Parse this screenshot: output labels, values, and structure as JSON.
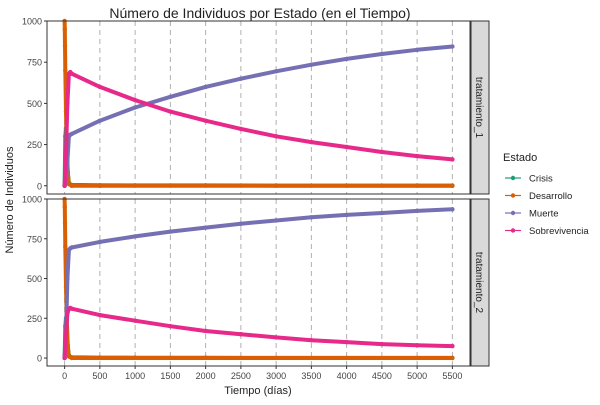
{
  "chart_data": {
    "type": "line",
    "title": "Número de Individuos por Estado (en el Tiempo)",
    "xlabel": "Tiempo (días)",
    "ylabel": "Número de Individuos",
    "xlim": [
      -250,
      5750
    ],
    "ylim": [
      -50,
      1000
    ],
    "x_ticks": [
      0,
      500,
      1000,
      1500,
      2000,
      2500,
      3000,
      3500,
      4000,
      4500,
      5000,
      5500
    ],
    "y_ticks": [
      0,
      250,
      500,
      750,
      1000
    ],
    "legend": {
      "title": "Estado",
      "position": "right",
      "entries": [
        "Crisis",
        "Desarrollo",
        "Muerte",
        "Sobrevivencia"
      ]
    },
    "colors": {
      "Crisis": "#1b9e77",
      "Desarrollo": "#d95f02",
      "Muerte": "#7570b3",
      "Sobrevivencia": "#e7298a",
      "strip_fill": "#d9d9d9",
      "grid": "#b0b0b0"
    },
    "panels": [
      {
        "strip_label": "tratamiento_1",
        "series": [
          {
            "name": "Crisis",
            "x": [
              0,
              10,
              20,
              30,
              45,
              60,
              100,
              500,
              1000,
              2000,
              3000,
              4000,
              5000,
              5500
            ],
            "y": [
              0,
              300,
              350,
              200,
              80,
              15,
              5,
              3,
              2,
              2,
              1,
              1,
              1,
              1
            ]
          },
          {
            "name": "Desarrollo",
            "x": [
              0,
              2,
              5,
              10,
              20,
              30,
              45,
              60,
              100,
              500,
              5500
            ],
            "y": [
              1000,
              950,
              850,
              700,
              450,
              250,
              80,
              10,
              0,
              0,
              0
            ]
          },
          {
            "name": "Muerte",
            "x": [
              0,
              20,
              40,
              60,
              80,
              100,
              500,
              1000,
              1500,
              2000,
              2500,
              3000,
              3500,
              4000,
              4500,
              5000,
              5500
            ],
            "y": [
              0,
              20,
              150,
              300,
              310,
              315,
              395,
              475,
              540,
              600,
              650,
              695,
              735,
              770,
              800,
              825,
              845
            ]
          },
          {
            "name": "Sobrevivencia",
            "x": [
              0,
              20,
              40,
              60,
              80,
              100,
              500,
              1000,
              1500,
              2000,
              2500,
              3000,
              3500,
              4000,
              4500,
              5000,
              5500
            ],
            "y": [
              0,
              200,
              500,
              680,
              690,
              680,
              600,
              520,
              450,
              395,
              345,
              300,
              265,
              235,
              205,
              180,
              160
            ]
          }
        ]
      },
      {
        "strip_label": "tratamiento_2",
        "series": [
          {
            "name": "Crisis",
            "x": [
              0,
              10,
              20,
              30,
              45,
              60,
              100,
              500,
              1000,
              2000,
              3000,
              4000,
              5000,
              5500
            ],
            "y": [
              0,
              200,
              250,
              150,
              60,
              15,
              5,
              3,
              2,
              2,
              1,
              1,
              1,
              1
            ]
          },
          {
            "name": "Desarrollo",
            "x": [
              0,
              2,
              5,
              10,
              20,
              30,
              45,
              60,
              100,
              500,
              5500
            ],
            "y": [
              1000,
              950,
              850,
              700,
              450,
              250,
              80,
              10,
              0,
              0,
              0
            ]
          },
          {
            "name": "Muerte",
            "x": [
              0,
              20,
              40,
              60,
              80,
              100,
              500,
              1000,
              1500,
              2000,
              2500,
              3000,
              3500,
              4000,
              4500,
              5000,
              5500
            ],
            "y": [
              0,
              150,
              500,
              680,
              690,
              695,
              730,
              765,
              795,
              820,
              845,
              865,
              885,
              900,
              912,
              925,
              935
            ]
          },
          {
            "name": "Sobrevivencia",
            "x": [
              0,
              20,
              40,
              60,
              80,
              100,
              500,
              1000,
              1500,
              2000,
              2500,
              3000,
              3500,
              4000,
              4500,
              5000,
              5500
            ],
            "y": [
              0,
              150,
              280,
              310,
              315,
              310,
              270,
              235,
              200,
              170,
              150,
              130,
              112,
              100,
              88,
              80,
              75
            ]
          }
        ]
      }
    ]
  }
}
